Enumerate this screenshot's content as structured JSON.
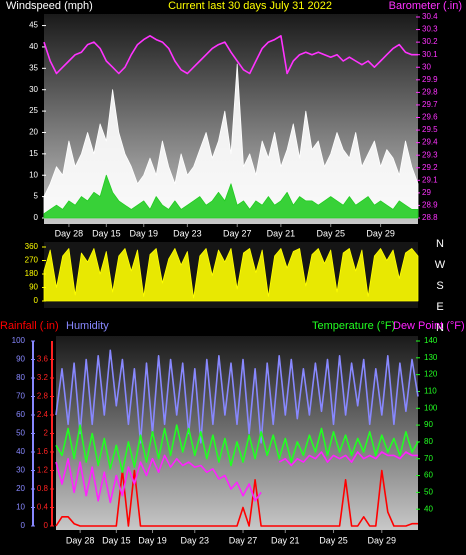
{
  "chart_data": [
    {
      "type": "line",
      "title": "Current last 30 days July 31 2022",
      "x": [
        0,
        0.5,
        1,
        1.5,
        2,
        2.5,
        3,
        3.5,
        4,
        4.5,
        5,
        5.5,
        6,
        6.5,
        7,
        7.5,
        8,
        8.5,
        9,
        9.5,
        10,
        10.5,
        11,
        11.5,
        12,
        12.5,
        13,
        13.5,
        14,
        14.5,
        15,
        15.5,
        16,
        16.5,
        17,
        17.5,
        18,
        18.5,
        19,
        19.5,
        20,
        20.5,
        21,
        21.5,
        22,
        22.5,
        23,
        23.5,
        24,
        24.5,
        25,
        25.5,
        26,
        26.5,
        27,
        27.5,
        28,
        28.5,
        29,
        29.5,
        30
      ],
      "xlim": [
        0,
        30
      ],
      "xticks": [
        {
          "value": 2,
          "label": "Day 28"
        },
        {
          "value": 5,
          "label": "Day 15"
        },
        {
          "value": 8,
          "label": "Day 19"
        },
        {
          "value": 11.5,
          "label": "Day 23"
        },
        {
          "value": 15.5,
          "label": "Day 27"
        },
        {
          "value": 19,
          "label": "Day 21"
        },
        {
          "value": 23,
          "label": "Day 25"
        },
        {
          "value": 27,
          "label": "Day 29"
        }
      ],
      "ylim": [
        0,
        47
      ],
      "yticks": [
        0,
        5,
        10,
        15,
        20,
        25,
        30,
        35,
        40,
        45
      ],
      "y_color": "#ffffff",
      "y2lim": [
        28.8,
        30.4
      ],
      "y2ticks": [
        28.8,
        28.9,
        29,
        29.1,
        29.2,
        29.3,
        29.4,
        29.5,
        29.6,
        29.7,
        29.8,
        29.9,
        30,
        30.1,
        30.2,
        30.3,
        30.4
      ],
      "y2_color": "#ff33ff",
      "series": [
        {
          "name": "Windspeed (mph)",
          "color": "#ffffff",
          "style": "area",
          "axis": "y",
          "values": [
            5,
            8,
            12,
            10,
            18,
            12,
            15,
            20,
            15,
            22,
            18,
            30,
            20,
            15,
            12,
            8,
            10,
            14,
            10,
            18,
            12,
            8,
            15,
            10,
            12,
            16,
            20,
            14,
            18,
            25,
            15,
            36,
            12,
            15,
            10,
            18,
            14,
            20,
            12,
            16,
            22,
            14,
            25,
            16,
            18,
            12,
            15,
            20,
            16,
            14,
            20,
            12,
            15,
            18,
            12,
            16,
            14,
            10,
            18,
            12,
            8
          ]
        },
        {
          "color": "#22cc22",
          "style": "area",
          "axis": "y",
          "values": [
            1,
            2,
            3,
            2,
            4,
            3,
            5,
            4,
            6,
            5,
            10,
            6,
            4,
            3,
            2,
            3,
            4,
            2,
            5,
            3,
            2,
            4,
            2,
            3,
            4,
            5,
            3,
            4,
            6,
            4,
            8,
            3,
            4,
            2,
            4,
            3,
            5,
            3,
            4,
            6,
            3,
            5,
            4,
            4,
            3,
            4,
            5,
            4,
            3,
            5,
            3,
            4,
            5,
            3,
            4,
            3,
            2,
            4,
            3,
            2,
            2
          ]
        },
        {
          "name": "Barometer (.in)",
          "color": "#ff33ff",
          "style": "line",
          "axis": "y2",
          "values": [
            30.2,
            30.05,
            29.95,
            30,
            30.05,
            30.1,
            30.12,
            30.18,
            30.2,
            30.15,
            30.05,
            30,
            29.95,
            30,
            30.1,
            30.18,
            30.22,
            30.25,
            30.22,
            30.2,
            30.15,
            30.05,
            29.98,
            29.95,
            30,
            30.05,
            30.1,
            30.15,
            30.18,
            30.2,
            30.12,
            30.05,
            29.98,
            29.95,
            30.05,
            30.15,
            30.2,
            30.22,
            30.25,
            29.95,
            30.05,
            30.1,
            30.12,
            30.1,
            30.12,
            30.1,
            30.08,
            30.1,
            30.05,
            30.08,
            30.05,
            30.02,
            30.05,
            30,
            30.05,
            30.1,
            30.15,
            30.18,
            30.12,
            30.1,
            30.1
          ]
        }
      ]
    },
    {
      "type": "line",
      "x": [
        0,
        0.5,
        1,
        1.5,
        2,
        2.5,
        3,
        3.5,
        4,
        4.5,
        5,
        5.5,
        6,
        6.5,
        7,
        7.5,
        8,
        8.5,
        9,
        9.5,
        10,
        10.5,
        11,
        11.5,
        12,
        12.5,
        13,
        13.5,
        14,
        14.5,
        15,
        15.5,
        16,
        16.5,
        17,
        17.5,
        18,
        18.5,
        19,
        19.5,
        20,
        20.5,
        21,
        21.5,
        22,
        22.5,
        23,
        23.5,
        24,
        24.5,
        25,
        25.5,
        26,
        26.5,
        27,
        27.5,
        28,
        28.5,
        29,
        29.5,
        30
      ],
      "xlim": [
        0,
        30
      ],
      "ylim": [
        0,
        360
      ],
      "yticks": [
        0,
        90,
        180,
        270,
        360
      ],
      "y_color": "#ffff00",
      "compass": [
        "N",
        "W",
        "S",
        "E",
        "N"
      ],
      "series": [
        {
          "color": "#ffff00",
          "style": "area",
          "axis": "y",
          "values": [
            200,
            340,
            90,
            300,
            350,
            40,
            320,
            260,
            350,
            180,
            330,
            60,
            300,
            350,
            200,
            340,
            30,
            310,
            350,
            120,
            280,
            350,
            240,
            330,
            20,
            300,
            350,
            170,
            340,
            260,
            350,
            80,
            320,
            350,
            190,
            340,
            30,
            300,
            350,
            220,
            330,
            350,
            100,
            310,
            350,
            250,
            340,
            60,
            320,
            350,
            200,
            340,
            30,
            300,
            350,
            270,
            340,
            150,
            320,
            350,
            300
          ]
        }
      ]
    },
    {
      "type": "line",
      "x": [
        0,
        0.5,
        1,
        1.5,
        2,
        2.5,
        3,
        3.5,
        4,
        4.5,
        5,
        5.5,
        6,
        6.5,
        7,
        7.5,
        8,
        8.5,
        9,
        9.5,
        10,
        10.5,
        11,
        11.5,
        12,
        12.5,
        13,
        13.5,
        14,
        14.5,
        15,
        15.5,
        16,
        16.5,
        17,
        17.5,
        18,
        18.5,
        19,
        19.5,
        20,
        20.5,
        21,
        21.5,
        22,
        22.5,
        23,
        23.5,
        24,
        24.5,
        25,
        25.5,
        26,
        26.5,
        27,
        27.5,
        28,
        28.5,
        29,
        29.5,
        30
      ],
      "xlim": [
        0,
        30
      ],
      "xticks": [
        {
          "value": 2,
          "label": "Day 28"
        },
        {
          "value": 5,
          "label": "Day 15"
        },
        {
          "value": 8,
          "label": "Day 19"
        },
        {
          "value": 11.5,
          "label": "Day 23"
        },
        {
          "value": 15.5,
          "label": "Day 27"
        },
        {
          "value": 19,
          "label": "Day 21"
        },
        {
          "value": 23,
          "label": "Day 25"
        },
        {
          "value": 27,
          "label": "Day 29"
        }
      ],
      "ylim": [
        0,
        100
      ],
      "yticks": [
        0,
        10,
        20,
        30,
        40,
        50,
        60,
        70,
        80,
        90,
        100
      ],
      "y_color": "#8888ff",
      "y2lim": [
        30,
        140
      ],
      "y2ticks": [
        40,
        50,
        60,
        70,
        80,
        90,
        100,
        110,
        120,
        130,
        140
      ],
      "y2_color": "#22ff22",
      "y3lim": [
        0,
        4
      ],
      "y3ticks": [
        0,
        0.4,
        0.8,
        1.2,
        1.6,
        2,
        2.4,
        2.8,
        3.2,
        3.6
      ],
      "y3_color": "#ff2222",
      "series": [
        {
          "name": "Rainfall (.in)",
          "color": "#ff0000",
          "style": "line",
          "axis": "y3",
          "values": [
            0,
            0.2,
            0.2,
            0.05,
            0,
            0,
            0,
            0,
            0,
            0,
            0,
            1.2,
            0,
            1.2,
            0,
            0,
            0,
            0,
            0,
            0,
            0,
            0,
            0,
            0,
            0,
            0,
            0,
            0,
            0,
            0,
            0,
            0.4,
            0,
            1,
            0,
            0,
            0,
            0,
            0,
            0,
            0,
            0,
            0,
            0,
            0,
            0,
            0,
            0,
            1,
            0,
            0,
            0.2,
            0,
            0,
            1.2,
            0.3,
            0,
            0,
            0,
            0.05,
            0.05
          ]
        },
        {
          "name": "Humidity",
          "color": "#8888ff",
          "style": "line",
          "axis": "y",
          "values": [
            60,
            85,
            55,
            88,
            50,
            90,
            55,
            92,
            60,
            95,
            65,
            90,
            55,
            85,
            45,
            88,
            50,
            92,
            55,
            90,
            60,
            88,
            50,
            85,
            45,
            90,
            55,
            92,
            60,
            88,
            55,
            90,
            50,
            85,
            45,
            88,
            55,
            92,
            60,
            90,
            58,
            85,
            60,
            88,
            62,
            90,
            55,
            92,
            60,
            88,
            65,
            90,
            55,
            85,
            60,
            92,
            55,
            88,
            62,
            90,
            70
          ]
        },
        {
          "name": "Temperature (°F)",
          "color": "#22ff22",
          "style": "line",
          "axis": "y2",
          "values": [
            78,
            72,
            88,
            70,
            90,
            68,
            85,
            66,
            82,
            64,
            78,
            62,
            80,
            65,
            84,
            68,
            86,
            70,
            88,
            72,
            90,
            74,
            88,
            72,
            86,
            70,
            84,
            68,
            82,
            66,
            80,
            68,
            84,
            70,
            86,
            72,
            84,
            70,
            82,
            68,
            80,
            72,
            84,
            74,
            88,
            72,
            86,
            74,
            84,
            72,
            82,
            74,
            86,
            72,
            84,
            74,
            82,
            72,
            86,
            74,
            80
          ]
        },
        {
          "name": "Dew Point (°F)",
          "color": "#ff22ff",
          "style": "line",
          "axis": "y2",
          "values": [
            68,
            55,
            70,
            50,
            68,
            48,
            65,
            45,
            62,
            44,
            60,
            48,
            65,
            55,
            68,
            60,
            70,
            62,
            72,
            65,
            70,
            66,
            68,
            65,
            66,
            62,
            64,
            58,
            60,
            52,
            56,
            48,
            55,
            45,
            50,
            null,
            null,
            68,
            70,
            66,
            70,
            68,
            72,
            70,
            74,
            68,
            72,
            70,
            72,
            68,
            74,
            70,
            72,
            70,
            74,
            72,
            72,
            70,
            74,
            72,
            72
          ]
        }
      ]
    }
  ]
}
